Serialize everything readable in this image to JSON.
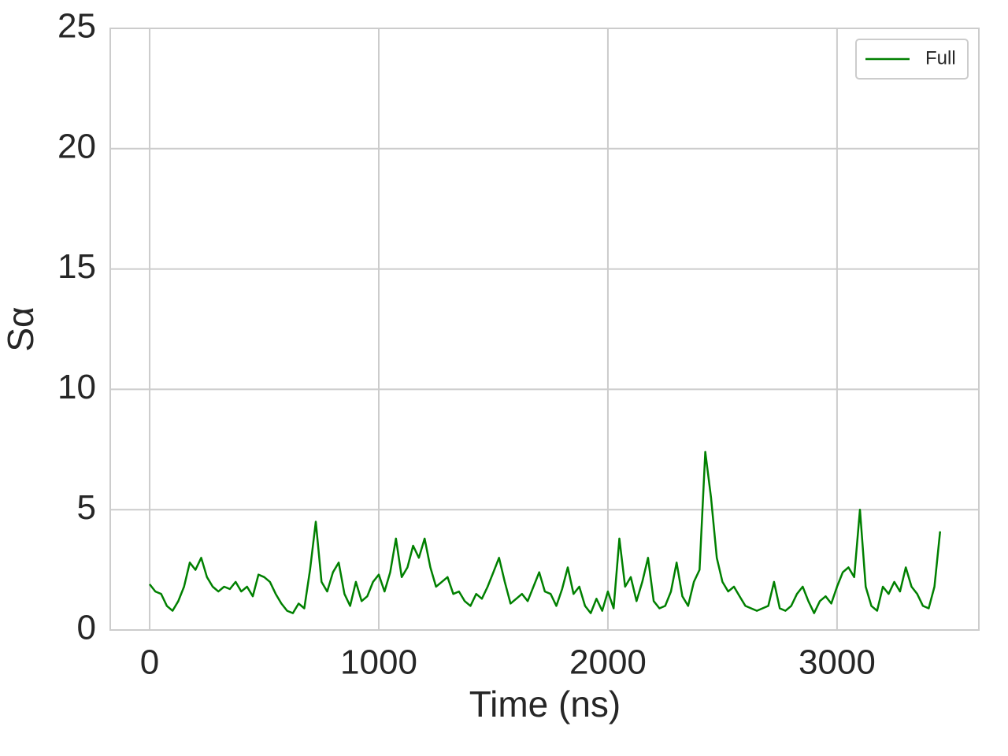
{
  "chart_data": {
    "type": "line",
    "xlabel": "Time (ns)",
    "ylabel": "Sα",
    "x": [
      0,
      25,
      50,
      75,
      100,
      125,
      150,
      175,
      200,
      225,
      250,
      275,
      300,
      325,
      350,
      375,
      400,
      425,
      450,
      475,
      500,
      525,
      550,
      575,
      600,
      625,
      650,
      675,
      700,
      725,
      750,
      775,
      800,
      825,
      850,
      875,
      900,
      925,
      950,
      975,
      1000,
      1025,
      1050,
      1075,
      1100,
      1125,
      1150,
      1175,
      1200,
      1225,
      1250,
      1275,
      1300,
      1325,
      1350,
      1375,
      1400,
      1425,
      1450,
      1475,
      1500,
      1525,
      1550,
      1575,
      1600,
      1625,
      1650,
      1675,
      1700,
      1725,
      1750,
      1775,
      1800,
      1825,
      1850,
      1875,
      1900,
      1925,
      1950,
      1975,
      2000,
      2025,
      2050,
      2075,
      2100,
      2125,
      2150,
      2175,
      2200,
      2225,
      2250,
      2275,
      2300,
      2325,
      2350,
      2375,
      2400,
      2425,
      2450,
      2475,
      2500,
      2525,
      2550,
      2575,
      2600,
      2625,
      2650,
      2675,
      2700,
      2725,
      2750,
      2775,
      2800,
      2825,
      2850,
      2875,
      2900,
      2925,
      2950,
      2975,
      3000,
      3025,
      3050,
      3075,
      3100,
      3125,
      3150,
      3175,
      3200,
      3225,
      3250,
      3275,
      3300,
      3325,
      3350,
      3375,
      3400,
      3425,
      3450
    ],
    "series": [
      {
        "name": "Full",
        "color": "#008000",
        "values": [
          1.9,
          1.6,
          1.5,
          1.0,
          0.8,
          1.2,
          1.8,
          2.8,
          2.5,
          3.0,
          2.2,
          1.8,
          1.6,
          1.8,
          1.7,
          2.0,
          1.6,
          1.8,
          1.4,
          2.3,
          2.2,
          2.0,
          1.5,
          1.1,
          0.8,
          0.7,
          1.1,
          0.9,
          2.5,
          4.5,
          2.0,
          1.6,
          2.4,
          2.8,
          1.5,
          1.0,
          2.0,
          1.2,
          1.4,
          2.0,
          2.3,
          1.6,
          2.4,
          3.8,
          2.2,
          2.6,
          3.5,
          3.0,
          3.8,
          2.6,
          1.8,
          2.0,
          2.2,
          1.5,
          1.6,
          1.2,
          1.0,
          1.5,
          1.3,
          1.8,
          2.4,
          3.0,
          2.0,
          1.1,
          1.3,
          1.5,
          1.2,
          1.8,
          2.4,
          1.6,
          1.5,
          1.0,
          1.7,
          2.6,
          1.5,
          1.8,
          1.0,
          0.7,
          1.3,
          0.8,
          1.6,
          0.9,
          3.8,
          1.8,
          2.2,
          1.2,
          2.0,
          3.0,
          1.2,
          0.9,
          1.0,
          1.6,
          2.8,
          1.4,
          1.0,
          2.0,
          2.5,
          7.4,
          5.5,
          3.0,
          2.0,
          1.6,
          1.8,
          1.4,
          1.0,
          0.9,
          0.8,
          0.9,
          1.0,
          2.0,
          0.9,
          0.8,
          1.0,
          1.5,
          1.8,
          1.2,
          0.7,
          1.2,
          1.4,
          1.1,
          1.8,
          2.4,
          2.6,
          2.2,
          5.0,
          1.8,
          1.0,
          0.8,
          1.8,
          1.5,
          2.0,
          1.6,
          2.6,
          1.8,
          1.5,
          1.0,
          0.9,
          1.8,
          4.1
        ]
      }
    ],
    "xlim": [
      -172,
      3619
    ],
    "ylim": [
      0,
      25
    ],
    "xticks": [
      0,
      1000,
      2000,
      3000
    ],
    "yticks": [
      0,
      5,
      10,
      15,
      20,
      25
    ],
    "grid": true,
    "legend": "upper right"
  }
}
